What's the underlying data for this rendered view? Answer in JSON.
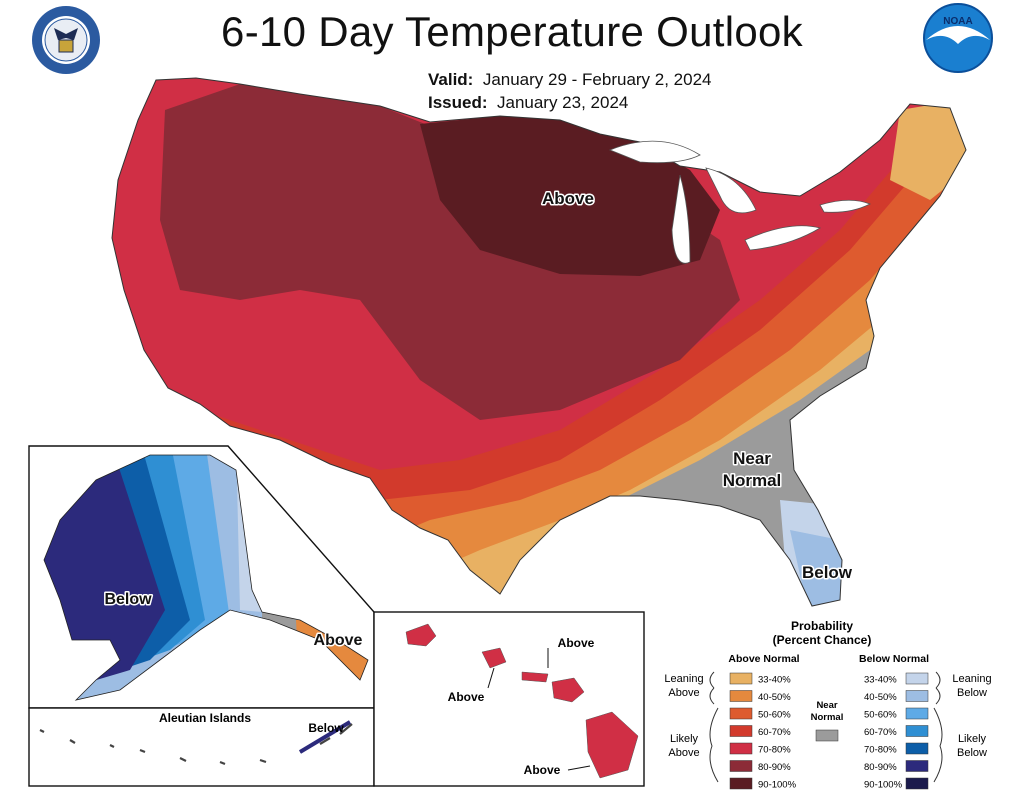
{
  "header": {
    "title": "6-10 Day Temperature Outlook",
    "valid_label": "Valid:",
    "valid_value": "January 29 - February 2, 2024",
    "issued_label": "Issued:",
    "issued_value": "January 23, 2024"
  },
  "logos": {
    "commerce_seal": "department-of-commerce-seal",
    "noaa_text": "NOAA"
  },
  "map_labels": {
    "above_north": "Above",
    "near_normal_1": "Near",
    "near_normal_2": "Normal",
    "below_florida": "Below",
    "alaska_below": "Below",
    "alaska_above": "Above",
    "aleutian_title": "Aleutian Islands",
    "aleutian_below": "Below",
    "hawaii_above_1": "Above",
    "hawaii_above_2": "Above",
    "hawaii_above_3": "Above"
  },
  "legend": {
    "title_1": "Probability",
    "title_2": "(Percent Chance)",
    "above_header": "Above Normal",
    "below_header": "Below Normal",
    "near_label_1": "Near",
    "near_label_2": "Normal",
    "leaning_above_1": "Leaning",
    "leaning_above_2": "Above",
    "likely_above_1": "Likely",
    "likely_above_2": "Above",
    "leaning_below_1": "Leaning",
    "leaning_below_2": "Below",
    "likely_below_1": "Likely",
    "likely_below_2": "Below",
    "ranges": [
      "33-40%",
      "40-50%",
      "50-60%",
      "60-70%",
      "70-80%",
      "80-90%",
      "90-100%"
    ],
    "above_colors": [
      "#e8b163",
      "#e5893e",
      "#de5b2f",
      "#d23a2c",
      "#d02f45",
      "#8c2b37",
      "#5a1c22"
    ],
    "below_colors": [
      "#c4d4ea",
      "#9dbde3",
      "#5eaae6",
      "#2f8fd3",
      "#0d5ea8",
      "#2c2a7c",
      "#1b1a4c"
    ],
    "near_color": "#9b9b9b"
  }
}
